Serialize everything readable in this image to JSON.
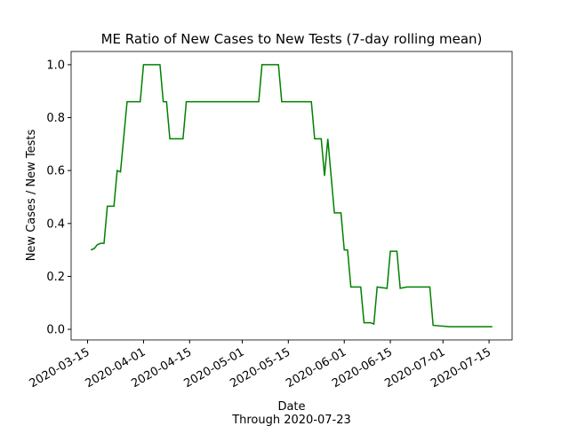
{
  "chart_data": {
    "type": "line",
    "title": "ME Ratio of New Cases to New Tests (7-day rolling mean)",
    "xlabel": "Date",
    "note": "Through 2020-07-23",
    "ylabel": "New Cases / New Tests",
    "x": [
      "2020-03-16",
      "2020-03-17",
      "2020-03-18",
      "2020-03-19",
      "2020-03-20",
      "2020-03-21",
      "2020-03-23",
      "2020-03-24",
      "2020-03-25",
      "2020-03-27",
      "2020-03-31",
      "2020-04-01",
      "2020-04-06",
      "2020-04-07",
      "2020-04-08",
      "2020-04-09",
      "2020-04-13",
      "2020-04-14",
      "2020-05-06",
      "2020-05-07",
      "2020-05-12",
      "2020-05-13",
      "2020-05-22",
      "2020-05-23",
      "2020-05-25",
      "2020-05-26",
      "2020-05-27",
      "2020-05-29",
      "2020-05-31",
      "2020-06-01",
      "2020-06-02",
      "2020-06-03",
      "2020-06-06",
      "2020-06-07",
      "2020-06-09",
      "2020-06-10",
      "2020-06-11",
      "2020-06-14",
      "2020-06-15",
      "2020-06-17",
      "2020-06-18",
      "2020-06-20",
      "2020-06-27",
      "2020-06-28",
      "2020-07-03",
      "2020-07-16"
    ],
    "series": [
      {
        "name": "ME",
        "color": "#008000",
        "values": [
          0.3,
          0.305,
          0.32,
          0.325,
          0.325,
          0.465,
          0.465,
          0.6,
          0.595,
          0.86,
          0.86,
          1.0,
          1.0,
          0.86,
          0.86,
          0.72,
          0.72,
          0.86,
          0.86,
          1.0,
          1.0,
          0.86,
          0.86,
          0.72,
          0.72,
          0.58,
          0.72,
          0.44,
          0.44,
          0.3,
          0.3,
          0.16,
          0.16,
          0.025,
          0.025,
          0.02,
          0.16,
          0.155,
          0.295,
          0.295,
          0.155,
          0.16,
          0.16,
          0.015,
          0.01,
          0.01
        ]
      }
    ],
    "xlim": [
      "2020-03-10",
      "2020-07-22"
    ],
    "xticks": [
      "2020-03-15",
      "2020-04-01",
      "2020-04-15",
      "2020-05-01",
      "2020-05-15",
      "2020-06-01",
      "2020-06-15",
      "2020-07-01",
      "2020-07-15"
    ],
    "ylim": [
      -0.04,
      1.05
    ],
    "yticks": [
      {
        "value": 0,
        "label": "0.0"
      },
      {
        "value": 0.2,
        "label": "0.2"
      },
      {
        "value": 0.4,
        "label": "0.4"
      },
      {
        "value": 0.6,
        "label": "0.6"
      },
      {
        "value": 0.8,
        "label": "0.8"
      },
      {
        "value": 1.0,
        "label": "1.0"
      }
    ],
    "grid": false
  }
}
